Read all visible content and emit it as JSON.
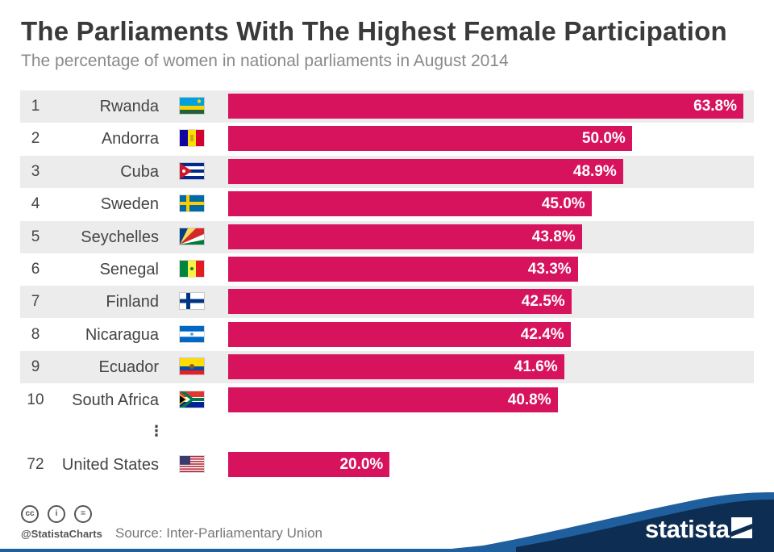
{
  "chart_data": {
    "type": "bar",
    "orientation": "horizontal",
    "title": "The Parliaments With The Highest Female Participation",
    "subtitle": "The percentage of women in national parliaments in August 2014",
    "unit": "%",
    "xlim": [
      0,
      63.8
    ],
    "rows": [
      {
        "rank": "1",
        "country": "Rwanda",
        "flag": "rwanda-flag",
        "value": 63.8,
        "label": "63.8%"
      },
      {
        "rank": "2",
        "country": "Andorra",
        "flag": "andorra-flag",
        "value": 50.0,
        "label": "50.0%"
      },
      {
        "rank": "3",
        "country": "Cuba",
        "flag": "cuba-flag",
        "value": 48.9,
        "label": "48.9%"
      },
      {
        "rank": "4",
        "country": "Sweden",
        "flag": "sweden-flag",
        "value": 45.0,
        "label": "45.0%"
      },
      {
        "rank": "5",
        "country": "Seychelles",
        "flag": "seychelles-flag",
        "value": 43.8,
        "label": "43.8%"
      },
      {
        "rank": "6",
        "country": "Senegal",
        "flag": "senegal-flag",
        "value": 43.3,
        "label": "43.3%"
      },
      {
        "rank": "7",
        "country": "Finland",
        "flag": "finland-flag",
        "value": 42.5,
        "label": "42.5%"
      },
      {
        "rank": "8",
        "country": "Nicaragua",
        "flag": "nicaragua-flag",
        "value": 42.4,
        "label": "42.4%"
      },
      {
        "rank": "9",
        "country": "Ecuador",
        "flag": "ecuador-flag",
        "value": 41.6,
        "label": "41.6%"
      },
      {
        "rank": "10",
        "country": "South Africa",
        "flag": "south-africa-flag",
        "value": 40.8,
        "label": "40.8%"
      },
      {
        "rank": "72",
        "country": "United States",
        "flag": "usa-flag",
        "value": 20.0,
        "label": "20.0%"
      }
    ],
    "ellipsis": "⋮",
    "bar_color": "#d7135e"
  },
  "footer": {
    "handle": "@StatistaCharts",
    "source": "Source: Inter-Parliamentary Union",
    "brand": "statista",
    "license_icons": [
      "cc-icon",
      "by-icon",
      "nd-icon"
    ],
    "license_glyphs": [
      "cc",
      "i",
      "="
    ]
  },
  "colors": {
    "accent": "#d7135e",
    "row_shade": "#ececec",
    "brand_dark": "#0d2d52",
    "brand_blue": "#1f5f9e"
  }
}
